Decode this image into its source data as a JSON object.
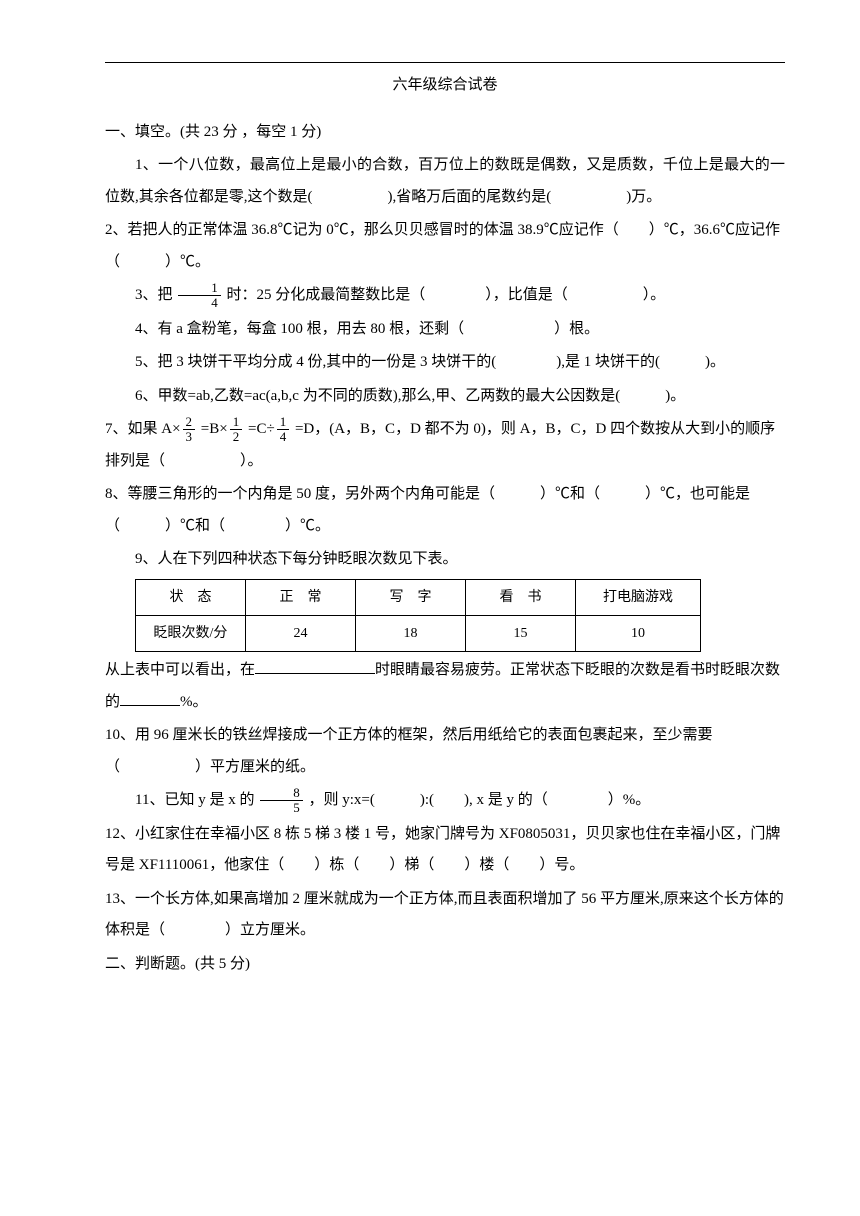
{
  "title": "六年级综合试卷",
  "section1": {
    "header": "一、填空。(共 23 分 ，每空 1 分)",
    "q1": "1、一个八位数，最高位上是最小的合数，百万位上的数既是偶数，又是质数，千位上是最大的一位数,其余各位都是零,这个数是(　　　　　),省略万后面的尾数约是(　　　　　)万。",
    "q2": "2、若把人的正常体温 36.8℃记为 0℃，那么贝贝感冒时的体温 38.9℃应记作（　　）℃，36.6℃应记作（　　　）℃。",
    "q3_before": "3、把 ",
    "q3_frac_num": "1",
    "q3_frac_den": "4",
    "q3_after": " 时：25 分化成最简整数比是（　　　　），比值是（　　　　　）。",
    "q4": "4、有 a 盒粉笔，每盒 100 根，用去 80 根，还剩（　　　　　　）根。",
    "q5": "5、把 3 块饼干平均分成 4 份,其中的一份是 3 块饼干的(　　　　),是 1 块饼干的(　　　)。",
    "q6": "6、甲数=ab,乙数=ac(a,b,c 为不同的质数),那么,甲、乙两数的最大公因数是(　　　)。",
    "q7_before": "7、如果 A×",
    "q7_f1_num": "2",
    "q7_f1_den": "3",
    "q7_mid1": " =B×",
    "q7_f2_num": "1",
    "q7_f2_den": "2",
    "q7_mid2": " =C÷",
    "q7_f3_num": "1",
    "q7_f3_den": "4",
    "q7_after": " =D，(A，B，C，D 都不为 0)，则 A，B，C，D 四个数按从大到小的顺序排列是（　　　　　）。",
    "q8": "8、等腰三角形的一个内角是 50 度，另外两个内角可能是（　　　）℃和（　　　）℃，也可能是（　　　）℃和（　　　　）℃。",
    "q9_intro": "9、人在下列四种状态下每分钟眨眼次数见下表。",
    "table": {
      "headers": [
        "状　态",
        "正　常",
        "写　字",
        "看　书",
        "打电脑游戏"
      ],
      "row_label": "眨眼次数/分",
      "values": [
        "24",
        "18",
        "15",
        "10"
      ]
    },
    "q9_after1": "从上表中可以看出，在",
    "q9_after2": "时眼睛最容易疲劳。正常状态下眨眼的次数是看书时眨眼次数的",
    "q9_after3": "%。",
    "q10": "10、用 96 厘米长的铁丝焊接成一个正方体的框架，然后用纸给它的表面包裹起来，至少需要（　　　　　）平方厘米的纸。",
    "q11_before": "11、已知 y 是 x 的 ",
    "q11_frac_num": "8",
    "q11_frac_den": "5",
    "q11_after": " ，则 y:x=(　　　):(　　), x 是 y 的（　　　　）%。",
    "q12": "12、小红家住在幸福小区 8 栋 5 梯 3 楼 1 号，她家门牌号为 XF0805031，贝贝家也住在幸福小区，门牌号是 XF1110061，他家住（　　）栋（　　）梯（　　）楼（　　）号。",
    "q13": "13、一个长方体,如果高增加 2 厘米就成为一个正方体,而且表面积增加了 56 平方厘米,原来这个长方体的体积是（　　　　）立方厘米。"
  },
  "section2": {
    "header": "二、判断题。(共 5 分)"
  }
}
